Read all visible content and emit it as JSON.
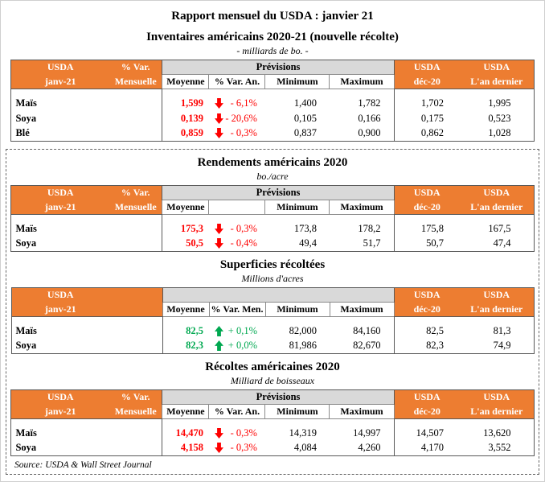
{
  "page": {
    "title": "Rapport mensuel du USDA : janvier 21",
    "source": "Source: USDA & Wall Street Journal"
  },
  "colors": {
    "accent_orange": "#ED7D31",
    "band_gray": "#D9D9D9",
    "negative_red": "#FE0000",
    "positive_green": "#00A850"
  },
  "tables": [
    {
      "title": "Inventaires américains 2020-21 (nouvelle récolte)",
      "subtitle": "- milliards de bo. -",
      "header": {
        "usda_current": [
          "USDA",
          "janv-21"
        ],
        "var_mensuelle": [
          "% Var.",
          "Mensuelle"
        ],
        "previsions": "Prévisions",
        "sub": [
          "Moyenne",
          "% Var. An.",
          "Minimum",
          "Maximum"
        ],
        "usda_dec": [
          "USDA",
          "déc-20"
        ],
        "usda_last": [
          "USDA",
          "L'an dernier"
        ]
      },
      "rows": [
        {
          "label": "Maïs",
          "moyenne": "1,599",
          "dir": "down",
          "variation": "- 6,1%",
          "min": "1,400",
          "max": "1,782",
          "dec": "1,702",
          "last": "1,995"
        },
        {
          "label": "Soya",
          "moyenne": "0,139",
          "dir": "down",
          "variation": "- 20,6%",
          "min": "0,105",
          "max": "0,166",
          "dec": "0,175",
          "last": "0,523"
        },
        {
          "label": "Blé",
          "moyenne": "0,859",
          "dir": "down",
          "variation": "- 0,3%",
          "min": "0,837",
          "max": "0,900",
          "dec": "0,862",
          "last": "1,028"
        }
      ]
    },
    {
      "title": "Rendements américains 2020",
      "subtitle": "bo./acre",
      "header": {
        "usda_current": [
          "USDA",
          "janv-21"
        ],
        "var_mensuelle": [
          "% Var.",
          "Mensuelle"
        ],
        "previsions": "Prévisions",
        "sub": [
          "Moyenne",
          "",
          "Minimum",
          "Maximum"
        ],
        "usda_dec": [
          "USDA",
          "déc-20"
        ],
        "usda_last": [
          "USDA",
          "L'an dernier"
        ]
      },
      "rows": [
        {
          "label": "Maïs",
          "moyenne": "175,3",
          "dir": "down",
          "variation": "- 0,3%",
          "min": "173,8",
          "max": "178,2",
          "dec": "175,8",
          "last": "167,5"
        },
        {
          "label": "Soya",
          "moyenne": "50,5",
          "dir": "down",
          "variation": "- 0,4%",
          "min": "49,4",
          "max": "51,7",
          "dec": "50,7",
          "last": "47,4"
        }
      ]
    },
    {
      "title": "Superficies récoltées",
      "subtitle": "Millions d'acres",
      "header": {
        "usda_current": [
          "USDA",
          "janv-21"
        ],
        "var_mensuelle": [
          "",
          ""
        ],
        "previsions": "",
        "sub": [
          "Moyenne",
          "% Var. Men.",
          "Minimum",
          "Maximum"
        ],
        "usda_dec": [
          "USDA",
          "déc-20"
        ],
        "usda_last": [
          "USDA",
          "L'an dernier"
        ]
      },
      "rows": [
        {
          "label": "Maïs",
          "moyenne": "82,5",
          "dir": "up",
          "variation": "+ 0,1%",
          "min": "82,000",
          "max": "84,160",
          "dec": "82,5",
          "last": "81,3"
        },
        {
          "label": "Soya",
          "moyenne": "82,3",
          "dir": "up",
          "variation": "+ 0,0%",
          "min": "81,986",
          "max": "82,670",
          "dec": "82,3",
          "last": "74,9"
        }
      ]
    },
    {
      "title": "Récoltes américaines 2020",
      "subtitle": "Milliard de boisseaux",
      "header": {
        "usda_current": [
          "USDA",
          "janv-21"
        ],
        "var_mensuelle": [
          "% Var.",
          "Mensuelle"
        ],
        "previsions": "Prévisions",
        "sub": [
          "Moyenne",
          "% Var. An.",
          "Minimum",
          "Maximum"
        ],
        "usda_dec": [
          "USDA",
          "déc-20"
        ],
        "usda_last": [
          "USDA",
          "L'an dernier"
        ]
      },
      "rows": [
        {
          "label": "Maïs",
          "moyenne": "14,470",
          "dir": "down",
          "variation": "- 0,3%",
          "min": "14,319",
          "max": "14,997",
          "dec": "14,507",
          "last": "13,620"
        },
        {
          "label": "Soya",
          "moyenne": "4,158",
          "dir": "down",
          "variation": "- 0,3%",
          "min": "4,084",
          "max": "4,260",
          "dec": "4,170",
          "last": "3,552"
        }
      ]
    }
  ]
}
